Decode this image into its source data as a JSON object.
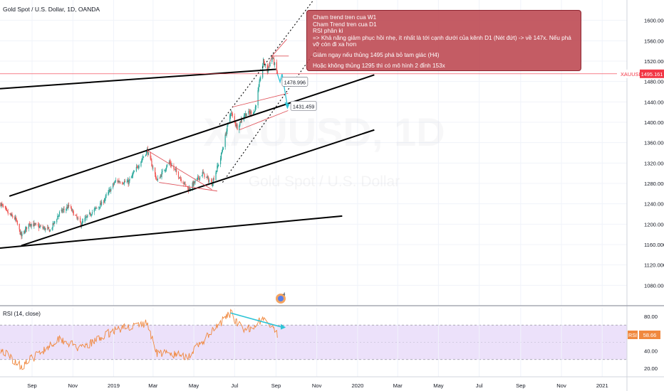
{
  "header": {
    "symbol_title": "Gold Spot / U.S. Dollar, 1D, OANDA"
  },
  "watermark": {
    "ticker": "XAUUSD, 1D",
    "name": "Gold Spot / U.S. Dollar"
  },
  "colors": {
    "up": "#26a69a",
    "down": "#ef5350",
    "trendline": "#000000",
    "channel": "#222222",
    "pattern": "#e0535b",
    "projection": "#2ec4d6",
    "rsi_line": "#f0883e",
    "rsi_band": "#ece1fa",
    "price_line": "#f23645"
  },
  "annotation_box": {
    "lines": [
      "Cham trend tren cua W1",
      "Cham Trend tren cua D1",
      "RSI phân kì",
      "=> Khả năng giảm phục hồi nhẹ, ít nhất là tới cạnh dưới của kênh D1 (Nét đứt) -> về 147x. Nếu phá vỡ còn đi xa hơn"
    ],
    "lines2": [
      "Giảm ngay nếu thủng 1495 phá bỏ tam giác (H4)",
      "Hoặc không thủng 1295 thì có mô hình 2 đỉnh 153x"
    ]
  },
  "price_labels": [
    {
      "label": "1478.996",
      "value": 1478.996
    },
    {
      "label": "1431.459",
      "value": 1431.459
    }
  ],
  "price_tag": {
    "symbol": "XAUUSD",
    "value": "1495.161"
  },
  "rsi": {
    "title": "RSI (14, close)",
    "tag_name": "RSI",
    "tag_value": "58.66"
  },
  "chart_data": {
    "type": "candlestick",
    "main": {
      "ylim": [
        1040,
        1640
      ],
      "y_ticks": [
        "1600.000",
        "1560.000",
        "1520.000",
        "1480.000",
        "1440.000",
        "1400.000",
        "1360.000",
        "1320.000",
        "1280.000",
        "1240.000",
        "1200.000",
        "1160.000",
        "1120.000",
        "1080.000"
      ],
      "y_tick_values": [
        1600,
        1560,
        1520,
        1480,
        1440,
        1400,
        1360,
        1320,
        1280,
        1240,
        1200,
        1160,
        1120,
        1080
      ],
      "last_price": 1495.161,
      "close_path": [
        {
          "date": "2018-07-16",
          "close": 1240
        },
        {
          "date": "2018-07-26",
          "close": 1222
        },
        {
          "date": "2018-08-07",
          "close": 1210
        },
        {
          "date": "2018-08-16",
          "close": 1176
        },
        {
          "date": "2018-08-28",
          "close": 1202
        },
        {
          "date": "2018-09-11",
          "close": 1195
        },
        {
          "date": "2018-09-28",
          "close": 1188
        },
        {
          "date": "2018-10-12",
          "close": 1222
        },
        {
          "date": "2018-10-26",
          "close": 1235
        },
        {
          "date": "2018-11-13",
          "close": 1200
        },
        {
          "date": "2018-11-28",
          "close": 1222
        },
        {
          "date": "2018-12-14",
          "close": 1240
        },
        {
          "date": "2019-01-04",
          "close": 1285
        },
        {
          "date": "2019-01-23",
          "close": 1282
        },
        {
          "date": "2019-02-20",
          "close": 1345
        },
        {
          "date": "2019-03-07",
          "close": 1285
        },
        {
          "date": "2019-03-25",
          "close": 1322
        },
        {
          "date": "2019-04-23",
          "close": 1268
        },
        {
          "date": "2019-05-14",
          "close": 1300
        },
        {
          "date": "2019-05-28",
          "close": 1280
        },
        {
          "date": "2019-06-10",
          "close": 1330
        },
        {
          "date": "2019-06-25",
          "close": 1420
        },
        {
          "date": "2019-07-05",
          "close": 1390
        },
        {
          "date": "2019-07-15",
          "close": 1415
        },
        {
          "date": "2019-07-31",
          "close": 1422
        },
        {
          "date": "2019-08-13",
          "close": 1520
        },
        {
          "date": "2019-08-19",
          "close": 1500
        },
        {
          "date": "2019-08-26",
          "close": 1530
        },
        {
          "date": "2019-09-03",
          "close": 1495
        }
      ],
      "projection": [
        {
          "date": "2019-09-03",
          "price": 1495
        },
        {
          "date": "2019-09-07",
          "price": 1478.996
        },
        {
          "date": "2019-09-10",
          "price": 1495
        },
        {
          "date": "2019-09-18",
          "price": 1431.459
        }
      ]
    },
    "rsi": {
      "ylim": [
        10,
        90
      ],
      "y_ticks": [
        "80.00",
        "60.00",
        "40.00",
        "20.00"
      ],
      "y_tick_values": [
        80,
        60,
        40,
        20
      ],
      "bands": [
        30,
        70
      ],
      "last": 58.66,
      "path": [
        {
          "date": "2018-07-16",
          "value": 42
        },
        {
          "date": "2018-08-16",
          "value": 22
        },
        {
          "date": "2018-10-12",
          "value": 55
        },
        {
          "date": "2018-11-13",
          "value": 42
        },
        {
          "date": "2019-01-04",
          "value": 65
        },
        {
          "date": "2019-02-20",
          "value": 72
        },
        {
          "date": "2019-03-07",
          "value": 38
        },
        {
          "date": "2019-04-23",
          "value": 34
        },
        {
          "date": "2019-06-25",
          "value": 84
        },
        {
          "date": "2019-07-15",
          "value": 62
        },
        {
          "date": "2019-08-13",
          "value": 78
        },
        {
          "date": "2019-09-03",
          "value": 58.66
        }
      ],
      "divergence_line": [
        {
          "date": "2019-06-25",
          "value": 84
        },
        {
          "date": "2019-09-08",
          "value": 68
        }
      ]
    },
    "x_axis": {
      "labels": [
        "Sep",
        "Nov",
        "2019",
        "Mar",
        "May",
        "Jul",
        "Sep",
        "Nov",
        "2020",
        "Mar",
        "May",
        "Jul",
        "Sep",
        "Nov",
        "2021"
      ],
      "dates": [
        "2018-09-01",
        "2018-11-01",
        "2019-01-01",
        "2019-03-01",
        "2019-05-01",
        "2019-07-01",
        "2019-09-01",
        "2019-11-01",
        "2020-01-01",
        "2020-03-01",
        "2020-05-01",
        "2020-07-01",
        "2020-09-01",
        "2020-11-01",
        "2021-01-01"
      ],
      "xlim": [
        "2018-07-15",
        "2021-02-07"
      ]
    },
    "trendlines": [
      {
        "style": "solid",
        "points": [
          {
            "date": "2018-07-15",
            "price": 1466
          },
          {
            "date": "2019-09-01",
            "price": 1504
          }
        ]
      },
      {
        "style": "solid",
        "points": [
          {
            "date": "2018-07-29",
            "price": 1255
          },
          {
            "date": "2020-01-26",
            "price": 1493
          }
        ]
      },
      {
        "style": "solid",
        "points": [
          {
            "date": "2018-08-16",
            "price": 1158
          },
          {
            "date": "2020-01-26",
            "price": 1385
          }
        ]
      },
      {
        "style": "solid",
        "points": [
          {
            "date": "2018-07-15",
            "price": 1153
          },
          {
            "date": "2019-12-09",
            "price": 1216
          }
        ]
      },
      {
        "style": "dotted",
        "points": [
          {
            "date": "2019-06-05",
            "price": 1390
          },
          {
            "date": "2019-10-27",
            "price": 1640
          }
        ]
      },
      {
        "style": "dotted",
        "points": [
          {
            "date": "2019-06-13",
            "price": 1282
          },
          {
            "date": "2019-11-08",
            "price": 1557
          }
        ]
      }
    ]
  }
}
